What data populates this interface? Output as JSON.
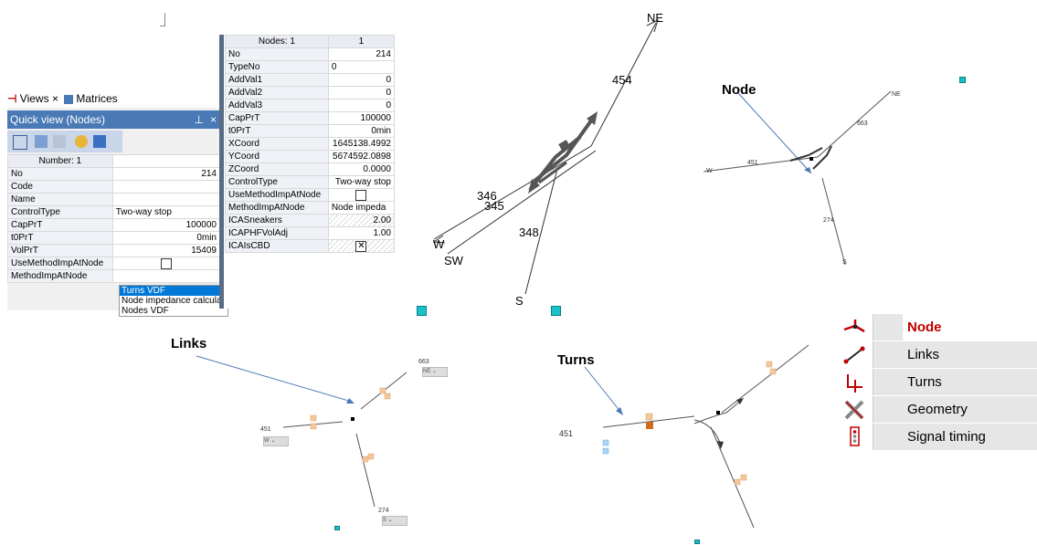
{
  "quick_view": {
    "tabs": [
      "Views",
      "Matrices"
    ],
    "title": "Quick view (Nodes)",
    "header": "Number: 1",
    "rows": [
      {
        "key": "No",
        "value": "214"
      },
      {
        "key": "Code",
        "value": ""
      },
      {
        "key": "Name",
        "value": ""
      },
      {
        "key": "ControlType",
        "value": "Two-way stop"
      },
      {
        "key": "CapPrT",
        "value": "100000"
      },
      {
        "key": "t0PrT",
        "value": "0min"
      },
      {
        "key": "VolPrT",
        "value": "15409"
      },
      {
        "key": "UseMethodImpAtNode",
        "value": ""
      },
      {
        "key": "MethodImpAtNode",
        "value": ""
      }
    ],
    "dropdown_options": [
      "Turns VDF",
      "Node impedance calculat",
      "Nodes VDF"
    ]
  },
  "list_grid": {
    "header_key": "Nodes: 1",
    "header_val": "1",
    "rows": [
      {
        "key": "No",
        "value": "214"
      },
      {
        "key": "TypeNo",
        "value": "0"
      },
      {
        "key": "AddVal1",
        "value": "0"
      },
      {
        "key": "AddVal2",
        "value": "0"
      },
      {
        "key": "AddVal3",
        "value": "0"
      },
      {
        "key": "CapPrT",
        "value": "100000"
      },
      {
        "key": "t0PrT",
        "value": "0min"
      },
      {
        "key": "XCoord",
        "value": "1645138.4992"
      },
      {
        "key": "YCoord",
        "value": "5674592.0898"
      },
      {
        "key": "ZCoord",
        "value": "0.0000"
      },
      {
        "key": "ControlType",
        "value": "Two-way stop"
      },
      {
        "key": "UseMethodImpAtNode",
        "value": ""
      },
      {
        "key": "MethodImpAtNode",
        "value": "Node impeda"
      },
      {
        "key": "ICASneakers",
        "value": "2.00"
      },
      {
        "key": "ICAPHFVolAdj",
        "value": "1.00"
      },
      {
        "key": "ICAIsCBD",
        "value": ""
      }
    ]
  },
  "big_node": {
    "labels": {
      "ne": "NE",
      "l454": "454",
      "l346": "346",
      "l345": "345",
      "l348": "348",
      "w": "W",
      "sw": "SW",
      "s": "S"
    }
  },
  "node_panel": {
    "title": "Node",
    "labels": {
      "ne": "NE",
      "l663": "663",
      "l451": "451",
      "w": "W",
      "l274": "274",
      "s": "S"
    }
  },
  "links_panel": {
    "title": "Links",
    "labels": {
      "l663": "663",
      "ne": "NE",
      "l451": "451",
      "w": "W",
      "l274": "274",
      "s": "S"
    }
  },
  "turns_panel": {
    "title": "Turns",
    "labels": {
      "l451": "451"
    }
  },
  "legend": {
    "items": [
      {
        "label": "Node",
        "icon": "node-icon",
        "active": true
      },
      {
        "label": "Links",
        "icon": "links-icon"
      },
      {
        "label": "Turns",
        "icon": "turns-icon"
      },
      {
        "label": "Geometry",
        "icon": "geometry-icon"
      },
      {
        "label": "Signal timing",
        "icon": "signal-timing-icon"
      }
    ]
  },
  "colors": {
    "accent": "#4a7ab5",
    "active_legend": "#c00000",
    "marker": "#19c2c8"
  }
}
